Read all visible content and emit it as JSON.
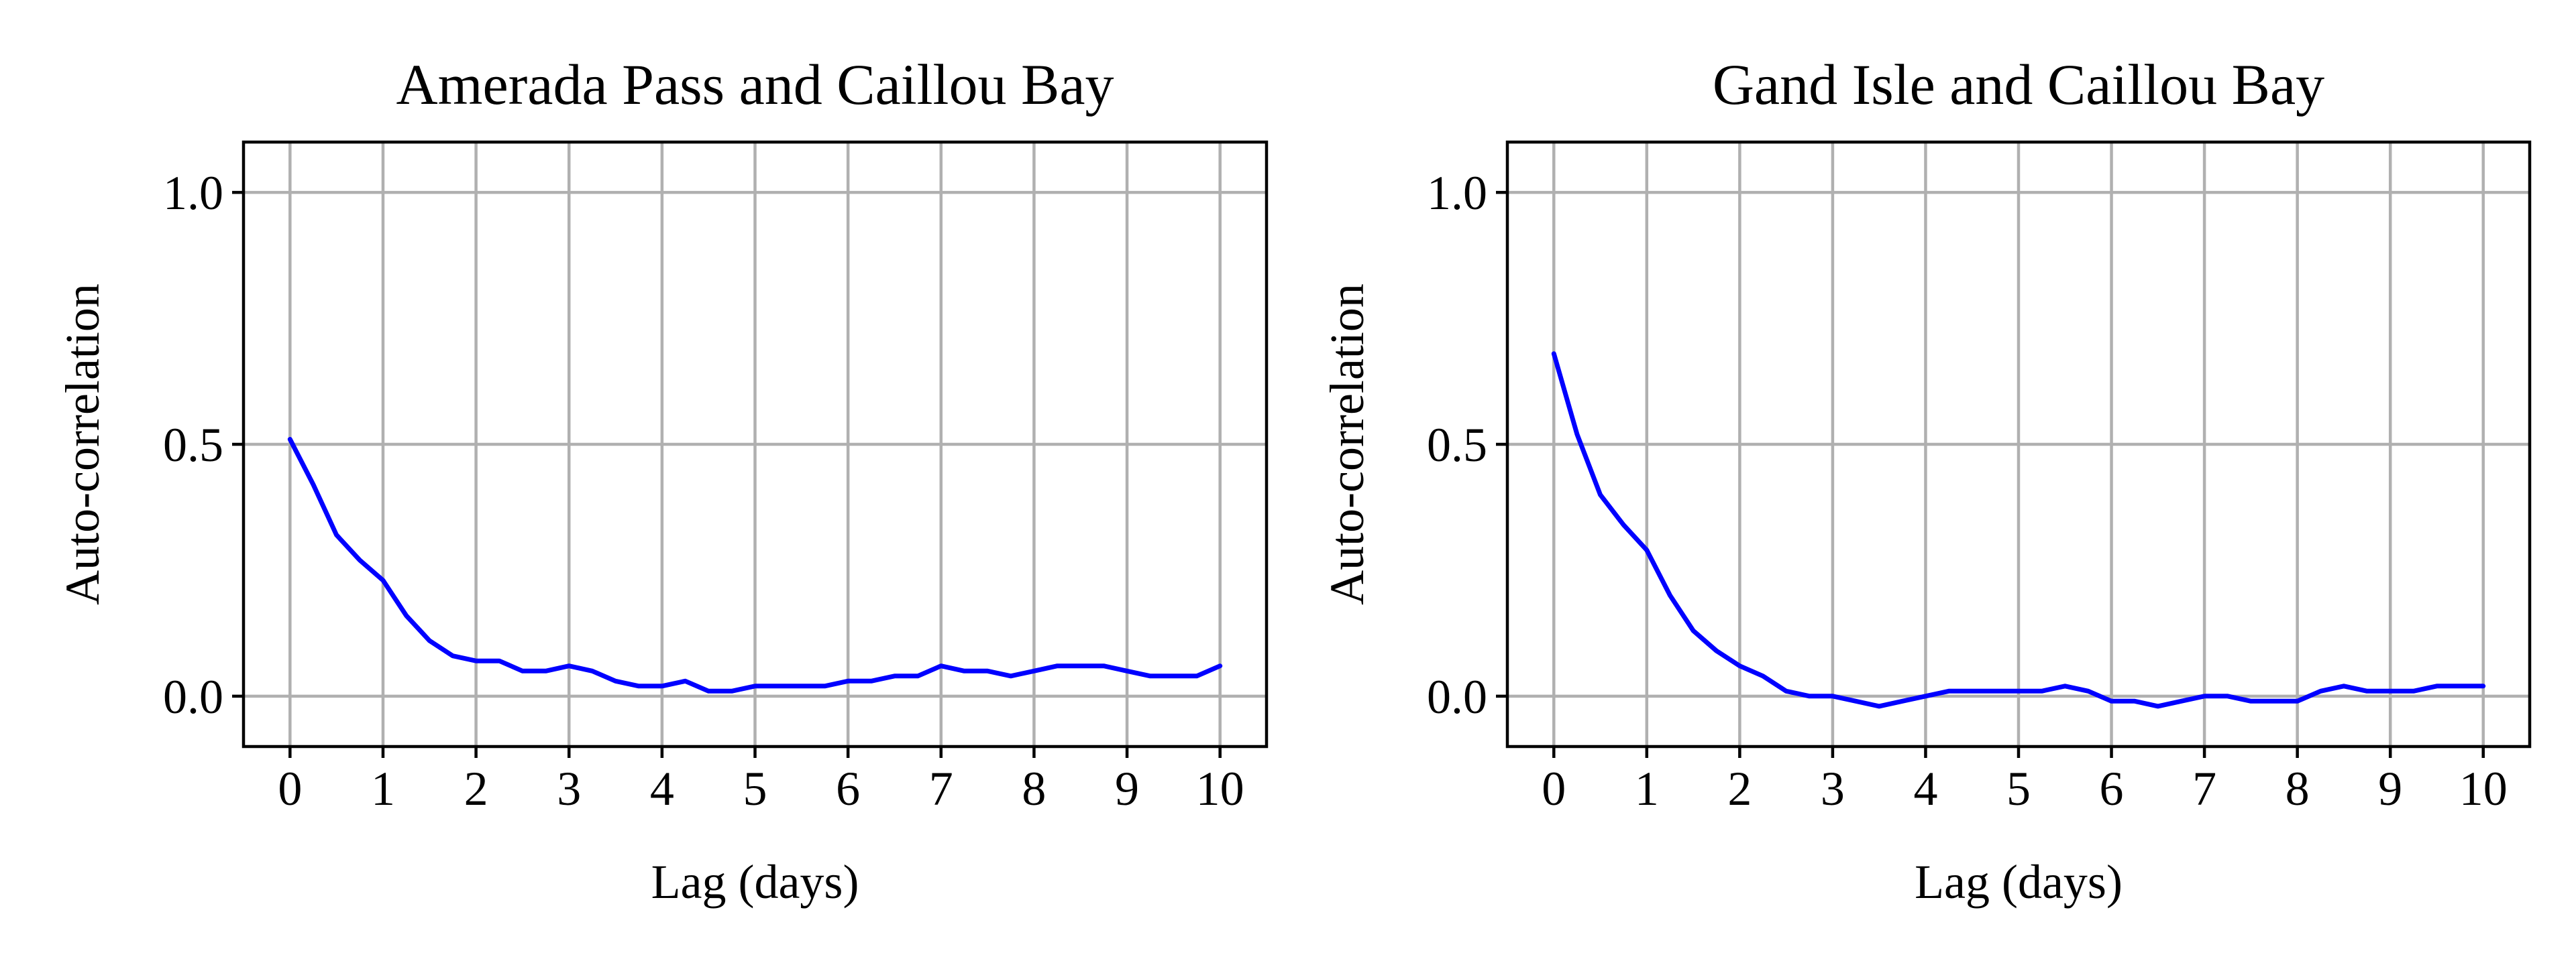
{
  "colors": {
    "series": "#0000ff",
    "grid": "#b0b0b0",
    "axes": "#000000",
    "background": "#ffffff"
  },
  "chart_data": [
    {
      "type": "line",
      "title": "Amerada Pass and Caillou Bay",
      "xlabel": "Lag (days)",
      "ylabel": "Auto-correlation",
      "xlim": [
        -0.5,
        10.5
      ],
      "ylim": [
        -0.1,
        1.1
      ],
      "xticks": [
        0,
        1,
        2,
        3,
        4,
        5,
        6,
        7,
        8,
        9,
        10
      ],
      "yticks": [
        0.0,
        0.5,
        1.0
      ],
      "xtick_labels": [
        "0",
        "1",
        "2",
        "3",
        "4",
        "5",
        "6",
        "7",
        "8",
        "9",
        "10"
      ],
      "ytick_labels": [
        "0.0",
        "0.5",
        "1.0"
      ],
      "grid": true,
      "legend": "none",
      "series": [
        {
          "color": "#0000ff",
          "x": [
            0,
            0.25,
            0.5,
            0.75,
            1,
            1.25,
            1.5,
            1.75,
            2,
            2.25,
            2.5,
            2.75,
            3,
            3.25,
            3.5,
            3.75,
            4,
            4.25,
            4.5,
            4.75,
            5,
            5.25,
            5.5,
            5.75,
            6,
            6.25,
            6.5,
            6.75,
            7,
            7.25,
            7.5,
            7.75,
            8,
            8.25,
            8.5,
            8.75,
            9,
            9.25,
            9.5,
            9.75,
            10
          ],
          "y": [
            0.51,
            0.42,
            0.32,
            0.27,
            0.23,
            0.16,
            0.11,
            0.08,
            0.07,
            0.07,
            0.05,
            0.05,
            0.06,
            0.05,
            0.03,
            0.02,
            0.02,
            0.03,
            0.01,
            0.01,
            0.02,
            0.02,
            0.02,
            0.02,
            0.03,
            0.03,
            0.04,
            0.04,
            0.06,
            0.05,
            0.05,
            0.04,
            0.05,
            0.06,
            0.06,
            0.06,
            0.05,
            0.04,
            0.04,
            0.04,
            0.06
          ]
        }
      ]
    },
    {
      "type": "line",
      "title": "Gand Isle and Caillou Bay",
      "xlabel": "Lag (days)",
      "ylabel": "Auto-correlation",
      "xlim": [
        -0.5,
        10.5
      ],
      "ylim": [
        -0.1,
        1.1
      ],
      "xticks": [
        0,
        1,
        2,
        3,
        4,
        5,
        6,
        7,
        8,
        9,
        10
      ],
      "yticks": [
        0.0,
        0.5,
        1.0
      ],
      "xtick_labels": [
        "0",
        "1",
        "2",
        "3",
        "4",
        "5",
        "6",
        "7",
        "8",
        "9",
        "10"
      ],
      "ytick_labels": [
        "0.0",
        "0.5",
        "1.0"
      ],
      "grid": true,
      "legend": "none",
      "series": [
        {
          "color": "#0000ff",
          "x": [
            0,
            0.25,
            0.5,
            0.75,
            1,
            1.25,
            1.5,
            1.75,
            2,
            2.25,
            2.5,
            2.75,
            3,
            3.25,
            3.5,
            3.75,
            4,
            4.25,
            4.5,
            4.75,
            5,
            5.25,
            5.5,
            5.75,
            6,
            6.25,
            6.5,
            6.75,
            7,
            7.25,
            7.5,
            7.75,
            8,
            8.25,
            8.5,
            8.75,
            9,
            9.25,
            9.5,
            9.75,
            10
          ],
          "y": [
            0.68,
            0.52,
            0.4,
            0.34,
            0.29,
            0.2,
            0.13,
            0.09,
            0.06,
            0.04,
            0.01,
            0.0,
            0.0,
            -0.01,
            -0.02,
            -0.01,
            0.0,
            0.01,
            0.01,
            0.01,
            0.01,
            0.01,
            0.02,
            0.01,
            -0.01,
            -0.01,
            -0.02,
            -0.01,
            0.0,
            0.0,
            -0.01,
            -0.01,
            -0.01,
            0.01,
            0.02,
            0.01,
            0.01,
            0.01,
            0.02,
            0.02,
            0.02
          ]
        }
      ]
    }
  ]
}
